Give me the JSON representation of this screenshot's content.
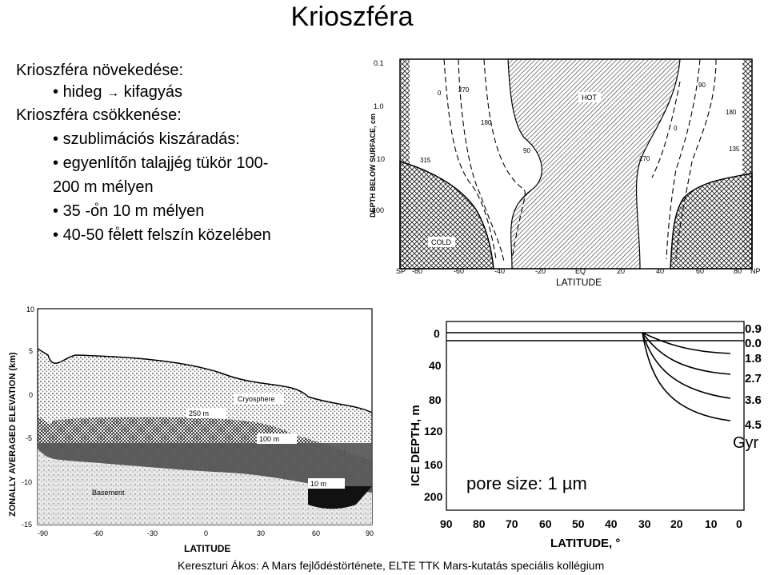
{
  "title": "Krioszféra",
  "bullets": {
    "growth_heading": "Krioszféra növekedése:",
    "growth_item_a": "hideg",
    "growth_item_b": "kifagyás",
    "shrink_heading": "Krioszféra csökkenése:",
    "item1": "szublimációs kiszáradás:",
    "item2a": "egyenlítőn talajjég tükör 100-",
    "item2b": "200 m mélyen",
    "item3": "35  -on 10 m mélyen",
    "item4": "40-50  felett felszín közelében"
  },
  "fig_top": {
    "ylabel": "DEPTH BELOW SURFACE, cm",
    "xlabel": "LATITUDE",
    "yticks": [
      "0.1",
      "1.0",
      "10",
      "100"
    ],
    "xticks": [
      "SP",
      "-80",
      "-60",
      "-40",
      "-20",
      "EQ",
      "20",
      "40",
      "60",
      "80",
      "NP"
    ],
    "region_hot": "HOT",
    "region_cold": "COLD",
    "contour_labels": [
      "0",
      "270",
      "180",
      "90",
      "315",
      "90",
      "180",
      "0",
      "135",
      "270"
    ]
  },
  "fig_left": {
    "ylabel": "ZONALLY AVERAGED ELEVATION (km)",
    "xlabel": "LATITUDE",
    "yticks": [
      "10",
      "5",
      "0",
      "-5",
      "-10",
      "-15"
    ],
    "xticks": [
      "-90",
      "-60",
      "-30",
      "0",
      "30",
      "60",
      "90"
    ],
    "label_cryosphere": "Cryosphere",
    "label_250": "250 m",
    "label_100": "100 m",
    "label_10": "10 m",
    "label_basement": "Basement"
  },
  "fig_right": {
    "ylabel": "ICE DEPTH, m",
    "xlabel": "LATITUDE, °",
    "yticks": [
      "0",
      "40",
      "80",
      "120",
      "160",
      "200"
    ],
    "xticks": [
      "90",
      "80",
      "70",
      "60",
      "50",
      "40",
      "30",
      "20",
      "10",
      "0"
    ],
    "curve_labels": [
      "0.9",
      "0.0",
      "1.8",
      "2.7",
      "3.6",
      "4.5"
    ],
    "unit_label": "Gyr",
    "pore_size": "pore size:  1 µm"
  },
  "footer": "Kereszturi Ákos: A Mars fejlődéstörténete, ELTE TTK Mars-kutatás speciális kollégium",
  "colors": {
    "text": "#000000",
    "background": "#ffffff"
  }
}
